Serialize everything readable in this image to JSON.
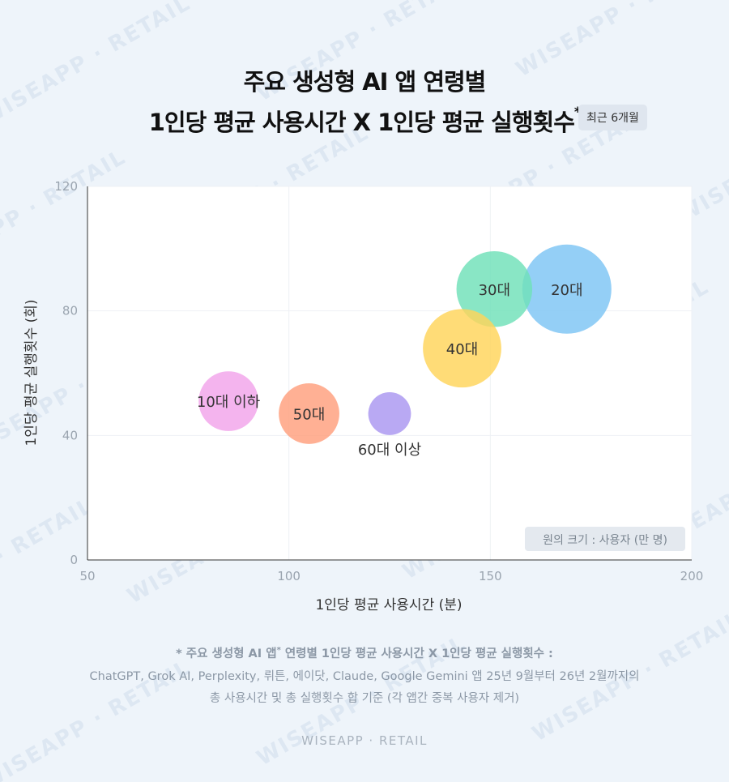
{
  "title_line1": "주요 생성형 AI 앱 연령별",
  "title_line2": "1인당 평균 사용시간 X 1인당 평균 실행횟수",
  "title_mark": "*",
  "period_badge": "최근 6개월",
  "bubble_legend": "원의 크기 : 사용자 (만 명)",
  "note": {
    "line1_prefix": "* 주요 생성형 AI 앱",
    "line1_mark": "*",
    "line1_suffix": " 연령별 1인당 평균 사용시간 X 1인당 평균 실행횟수 :",
    "line2": "ChatGPT, Grok AI, Perplexity, 뤼튼, 에이닷, Claude, Google Gemini 앱 25년 9월부터 26년 2월까지의",
    "line3": "총 사용시간 및 총 실행횟수 합 기준 (각 앱간 중복 사용자 제거)"
  },
  "brand": "WISEAPP · RETAIL",
  "watermark_text": "WISEAPP · RETAIL",
  "chart_data": {
    "type": "scatter",
    "xlabel": "1인당 평균 사용시간 (분)",
    "ylabel": "1인당 평균 실행횟수 (회)",
    "xlim": [
      50,
      200
    ],
    "ylim": [
      0,
      120
    ],
    "x_ticks": [
      "50",
      "100",
      "150",
      "200"
    ],
    "y_ticks": [
      "0",
      "40",
      "80",
      "120"
    ],
    "grid": true,
    "series": [
      {
        "name": "20대",
        "x": 169,
        "y": 87,
        "size_relative": 1.0,
        "color": "#7cc4f4"
      },
      {
        "name": "30대",
        "x": 151,
        "y": 87,
        "size_relative": 0.85,
        "color": "#6fe0b8"
      },
      {
        "name": "40대",
        "x": 143,
        "y": 68,
        "size_relative": 0.88,
        "color": "#ffd459"
      },
      {
        "name": "10대 이하",
        "x": 85,
        "y": 51,
        "size_relative": 0.67,
        "color": "#f2a4ea"
      },
      {
        "name": "50대",
        "x": 105,
        "y": 47,
        "size_relative": 0.68,
        "color": "#ff9f7c"
      },
      {
        "name": "60대 이상",
        "x": 125,
        "y": 47,
        "size_relative": 0.48,
        "color": "#a996f0"
      }
    ]
  }
}
